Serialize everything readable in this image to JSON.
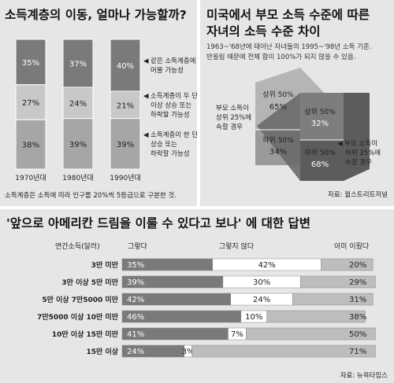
{
  "chart_data": [
    {
      "type": "bar",
      "title": "소득계층의 이동, 얼마나 가능할까?",
      "categories": [
        "1970년대",
        "1980년대",
        "1990년대"
      ],
      "series": [
        {
          "name": "같은 소득계층에 머물 가능성",
          "values": [
            35,
            37,
            40
          ]
        },
        {
          "name": "소득계층이 두 단계 이상 상승 또는 하락할 가능성",
          "values": [
            27,
            24,
            21
          ]
        },
        {
          "name": "소득계층이 한 단계 상승 또는 하락할 가능성",
          "values": [
            38,
            39,
            39
          ]
        }
      ],
      "note": "소득계층은 소득에 따라 인구를 20%씩 5등급으로 구분한 것."
    },
    {
      "type": "diagram",
      "title_line1": "미국에서 부모 소득 수준에 따른",
      "title_line2": "자녀의 소득 수준 차이",
      "subtitle_line1": "1963~'68년에 태어난 자녀들의 1995~'98년 소득 기준.",
      "subtitle_line2": "반올림 때문에 전체 합이 100%가 되지 않을 수 있음.",
      "left_label": [
        "부모 소득이",
        "상위 25%에",
        "속할 경우"
      ],
      "right_label": [
        "◀ 부모 소득이",
        "하위 25%에",
        "속할 경우"
      ],
      "left_upper": {
        "label": "상위 50%",
        "value": "65%"
      },
      "left_lower": {
        "label": "하위 50%",
        "value": "34%"
      },
      "right_upper": {
        "label": "상위 50%",
        "value": "32%"
      },
      "right_lower": {
        "label": "하위 50%",
        "value": "68%"
      },
      "source": "자료: 월스트리트저널"
    },
    {
      "type": "bar",
      "stacked": true,
      "title": "'앞으로 아메리칸 드림을 이룰 수 있다고 보나' 에 대한 답변",
      "header": {
        "income": "연간소득(달러)",
        "yes": "그렇다",
        "no": "그렇지 않다",
        "done": "이미 이뤘다"
      },
      "categories": [
        "3만 미만",
        "3만 이상 5만 미만",
        "5만 이상 7만5000 미만",
        "7만5000 이상 10만 미만",
        "10만 이상 15만 미만",
        "15만 이상"
      ],
      "series": [
        {
          "name": "그렇다",
          "values": [
            35,
            39,
            42,
            46,
            41,
            24
          ]
        },
        {
          "name": "그렇지 않다",
          "values": [
            42,
            30,
            24,
            10,
            7,
            3
          ]
        },
        {
          "name": "이미 이뤘다",
          "values": [
            20,
            29,
            31,
            38,
            50,
            71
          ]
        }
      ],
      "source": "자료: 뉴욕타임스"
    }
  ]
}
